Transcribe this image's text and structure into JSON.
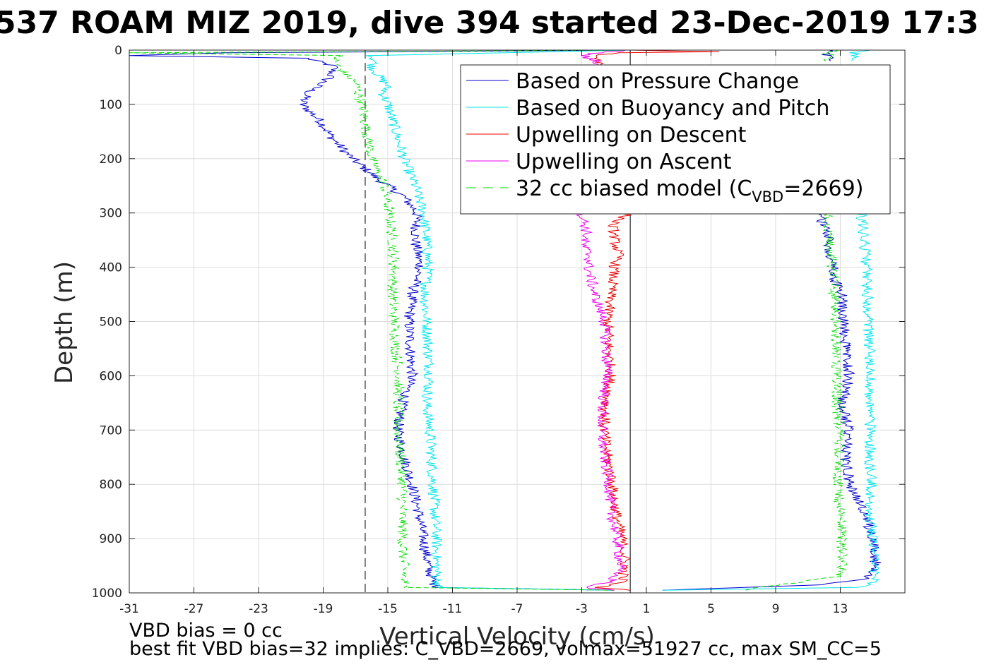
{
  "chart_data": {
    "type": "line",
    "title": "537 ROAM MIZ 2019, dive 394 started 23-Dec-2019 17:3",
    "xlabel": "Vertical Velocity (cm/s)",
    "ylabel": "Depth (m)",
    "xlim": [
      -31,
      17
    ],
    "ylim": [
      0,
      1000
    ],
    "y_reversed": true,
    "grid": true,
    "legend_position": "top-right",
    "xticks": [
      -31,
      -27,
      -23,
      -19,
      -15,
      -11,
      -7,
      -3,
      1,
      5,
      9,
      13
    ],
    "xtick_labels": [
      "-31",
      "-27",
      "-23",
      "-19",
      "-15",
      "-11",
      "-7",
      "-3",
      "1",
      "5",
      "9",
      "13"
    ],
    "yticks": [
      0,
      100,
      200,
      300,
      400,
      500,
      600,
      700,
      800,
      900,
      1000
    ],
    "ytick_labels": [
      "0",
      "100",
      "200",
      "300",
      "400",
      "500",
      "600",
      "700",
      "800",
      "900",
      "1000"
    ],
    "reference_lines": [
      {
        "x": -16.4,
        "style": "dashed",
        "color": "#000000"
      },
      {
        "x": 0.0,
        "style": "solid",
        "color": "#000000"
      }
    ],
    "legend": [
      {
        "label": "Based on Pressure Change",
        "color": "#0000cc",
        "style": "solid"
      },
      {
        "label": "Based on Buoyancy and Pitch",
        "color": "#00e5ee",
        "style": "solid"
      },
      {
        "label": "Upwelling on Descent",
        "color": "#ee0000",
        "style": "solid"
      },
      {
        "label": "Upwelling on Ascent",
        "color": "#ee00ee",
        "style": "solid"
      },
      {
        "label": "32 cc biased model (C",
        "label_sub": "VBD",
        "label_tail": "=2669)",
        "color": "#00dd00",
        "style": "dashed"
      }
    ],
    "series": [
      {
        "key": "pressure_descent",
        "color": "#0000cc",
        "style": "solid",
        "depth": [
          0,
          5,
          10,
          15,
          30,
          50,
          80,
          100,
          130,
          160,
          200,
          240,
          270,
          300,
          350,
          400,
          450,
          500,
          550,
          600,
          650,
          700,
          750,
          800,
          850,
          900,
          950,
          980,
          990,
          995
        ],
        "values": [
          0,
          -25,
          -31,
          -20,
          -18.3,
          -18.6,
          -20,
          -20.3,
          -19.2,
          -18.5,
          -17.2,
          -15.5,
          -14,
          -13.2,
          -13.3,
          -13,
          -13.5,
          -13.7,
          -13.6,
          -13.5,
          -14.1,
          -14.4,
          -14,
          -13.5,
          -13.1,
          -12.8,
          -12.5,
          -12.2,
          -12,
          -1
        ]
      },
      {
        "key": "buoyancy_descent",
        "color": "#00e5ee",
        "style": "solid",
        "depth": [
          0,
          10,
          20,
          30,
          50,
          65,
          80,
          100,
          150,
          200,
          250,
          300,
          350,
          400,
          450,
          500,
          550,
          600,
          650,
          700,
          750,
          800,
          850,
          900,
          950,
          990,
          995
        ],
        "values": [
          0,
          -16,
          -15.8,
          -16,
          -15.5,
          -15,
          -15.3,
          -15,
          -14.5,
          -14,
          -13.3,
          -12.8,
          -12.6,
          -12.5,
          -12.7,
          -12.6,
          -12.5,
          -12.4,
          -12.6,
          -12.4,
          -12.3,
          -12.2,
          -12.1,
          -12,
          -12,
          -11.9,
          -1
        ]
      },
      {
        "key": "model_descent",
        "color": "#00dd00",
        "style": "dashed",
        "depth": [
          0,
          5,
          10,
          20,
          40,
          60,
          80,
          100,
          150,
          200,
          250,
          300,
          350,
          400,
          450,
          500,
          550,
          600,
          650,
          700,
          750,
          800,
          850,
          900,
          950,
          990,
          995
        ],
        "values": [
          0,
          -31,
          -18,
          -18.3,
          -17.8,
          -17,
          -16.8,
          -16.6,
          -16.3,
          -16,
          -15.2,
          -14.9,
          -14.7,
          -14.6,
          -14.7,
          -14.6,
          -14.5,
          -14.3,
          -14.4,
          -14.4,
          -14.2,
          -14.1,
          -14.1,
          -14.1,
          -14,
          -14,
          -1
        ]
      },
      {
        "key": "pressure_ascent",
        "color": "#0000cc",
        "style": "solid",
        "depth": [
          995,
          985,
          975,
          950,
          900,
          850,
          800,
          750,
          700,
          650,
          600,
          550,
          500,
          450,
          420,
          400,
          380,
          350,
          320,
          300
        ],
        "values": [
          2,
          12,
          14.6,
          15.2,
          15,
          14.5,
          13.6,
          13.3,
          13.5,
          13.1,
          13.6,
          13.3,
          13.2,
          13.1,
          12.6,
          12.6,
          12.4,
          12.3,
          11.9,
          11.8
        ]
      },
      {
        "key": "buoyancy_ascent",
        "color": "#00e5ee",
        "style": "solid",
        "depth": [
          995,
          990,
          980,
          950,
          900,
          850,
          800,
          750,
          700,
          650,
          600,
          550,
          500,
          450,
          400,
          350,
          300
        ],
        "values": [
          2,
          14,
          15.1,
          15.2,
          15,
          14.8,
          14.9,
          14.8,
          14.9,
          14.8,
          14.9,
          14.8,
          14.7,
          14.7,
          14.6,
          14.5,
          14.3
        ]
      },
      {
        "key": "model_ascent",
        "color": "#00dd00",
        "style": "dashed",
        "depth": [
          995,
          990,
          970,
          950,
          900,
          850,
          800,
          750,
          700,
          650,
          600,
          550,
          500,
          450,
          400,
          350,
          300
        ],
        "values": [
          7,
          8,
          12.9,
          13.1,
          13.1,
          13,
          12.9,
          12.9,
          12.9,
          12.8,
          12.8,
          12.7,
          12.7,
          12.6,
          12.5,
          12.3,
          12.2
        ]
      },
      {
        "key": "pressure_ascent_top",
        "color": "#0000cc",
        "style": "solid",
        "depth": [
          0,
          5,
          10,
          20
        ],
        "values": [
          12.6,
          12,
          12.2,
          12.4
        ]
      },
      {
        "key": "buoyancy_ascent_top",
        "color": "#00e5ee",
        "style": "solid",
        "depth": [
          0,
          5,
          10,
          20
        ],
        "values": [
          14.8,
          13.8,
          14,
          13.7
        ]
      },
      {
        "key": "model_ascent_top",
        "color": "#00dd00",
        "style": "dashed",
        "depth": [
          0,
          5,
          10,
          20
        ],
        "values": [
          12.8,
          12.1,
          12.4,
          12.1
        ]
      },
      {
        "key": "upwelling_descent",
        "color": "#ee0000",
        "style": "solid",
        "depth": [
          0,
          3,
          5,
          10,
          300,
          320,
          340,
          360,
          380,
          400,
          450,
          500,
          550,
          600,
          650,
          700,
          750,
          800,
          850,
          900,
          950,
          980,
          990,
          995
        ],
        "values": [
          0,
          5.5,
          -1,
          -2,
          0,
          -1.1,
          -1,
          -0.9,
          -0.7,
          -1,
          -1.2,
          -1.4,
          -1.3,
          -1.2,
          -1.5,
          -1.6,
          -1.4,
          -1.1,
          -0.9,
          -0.5,
          -0.3,
          -0.5,
          -2,
          0
        ]
      },
      {
        "key": "upwelling_ascent",
        "color": "#ee00ee",
        "style": "solid",
        "depth": [
          0,
          5,
          10,
          20,
          300,
          320,
          340,
          360,
          380,
          400,
          450,
          500,
          550,
          600,
          650,
          700,
          750,
          800,
          850,
          900,
          950,
          980,
          990,
          995
        ],
        "values": [
          0,
          -2,
          -3,
          -2,
          -3,
          -2.8,
          -2.7,
          -2.9,
          -2.5,
          -2.6,
          -2.2,
          -1.6,
          -1.5,
          -1.4,
          -1.7,
          -1.8,
          -1.6,
          -1.3,
          -1.2,
          -0.8,
          -0.6,
          -1.2,
          -3,
          -1
        ]
      }
    ],
    "annotations": [
      "VBD bias = 0 cc",
      "best fit VBD bias=32 implies: C_VBD=2669, volmax=51927 cc, max SM_CC=5"
    ]
  }
}
